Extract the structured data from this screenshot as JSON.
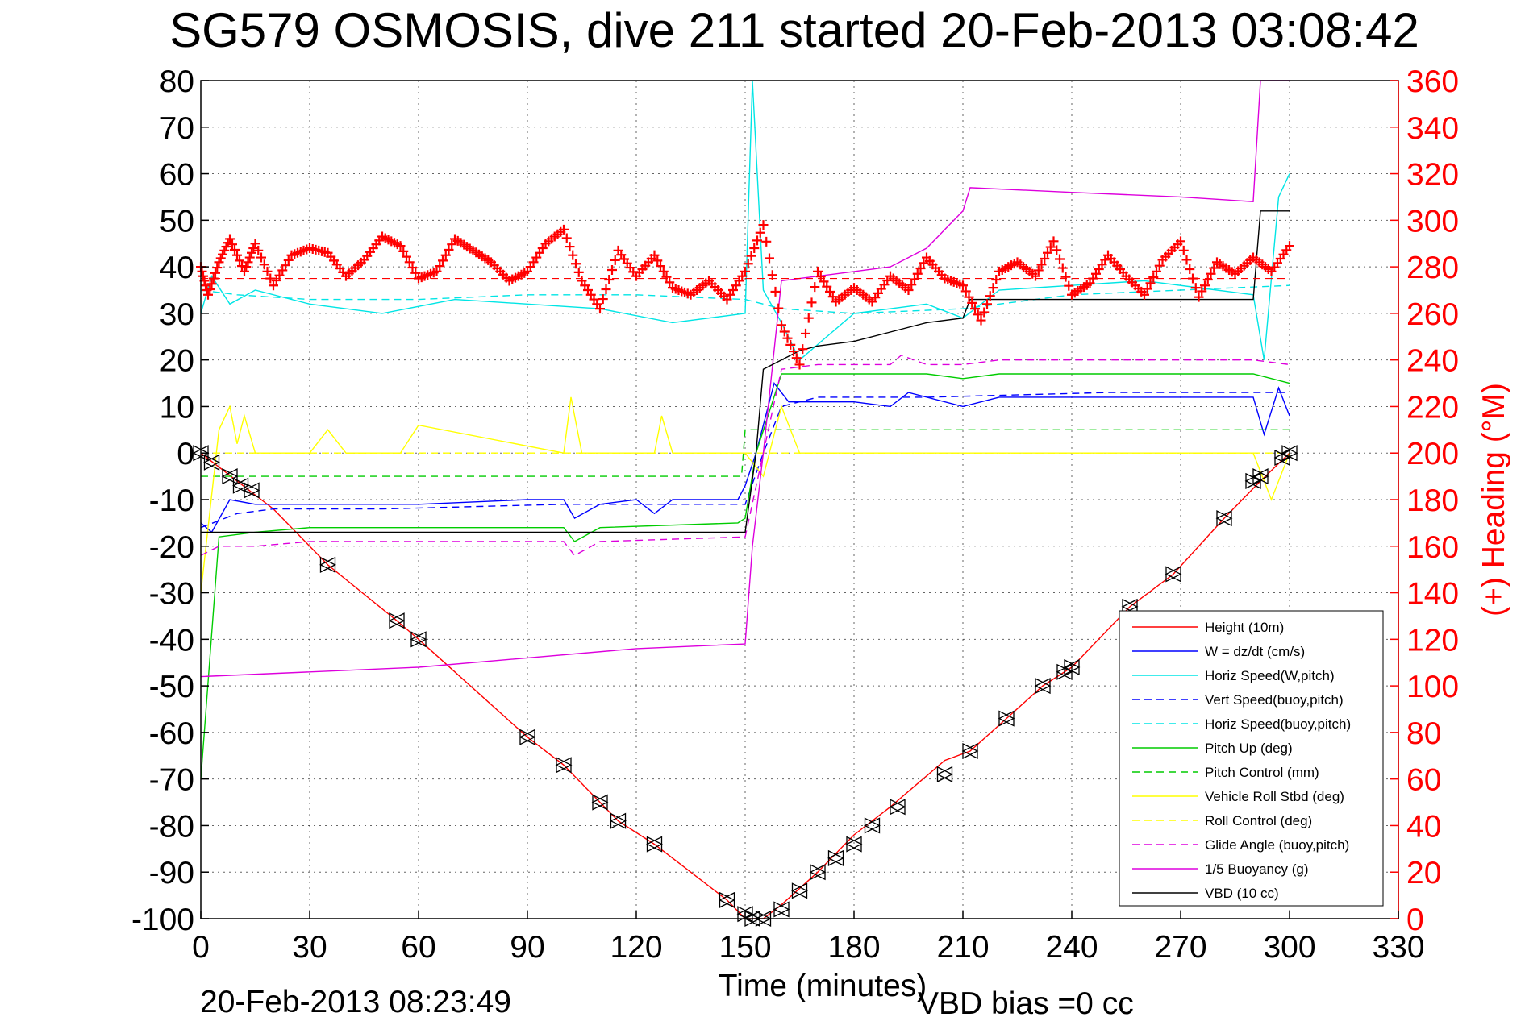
{
  "chart_data": {
    "type": "line",
    "title": "SG579 OSMOSIS, dive 211 started 20-Feb-2013 03:08:42",
    "xlabel": "Time (minutes)",
    "ylabel": "",
    "y2label": "(+) Heading (°M)",
    "xlim": [
      0,
      330
    ],
    "ylim": [
      -100,
      80
    ],
    "y2lim": [
      0,
      360
    ],
    "xticks": [
      "0",
      "30",
      "60",
      "90",
      "120",
      "150",
      "180",
      "210",
      "240",
      "270",
      "300",
      "330"
    ],
    "yticks": [
      "80",
      "70",
      "60",
      "50",
      "40",
      "30",
      "20",
      "10",
      "0",
      "-10",
      "-20",
      "-30",
      "-40",
      "-50",
      "-60",
      "-70",
      "-80",
      "-90",
      "-100"
    ],
    "y2ticks": [
      "360",
      "340",
      "320",
      "300",
      "280",
      "260",
      "240",
      "220",
      "200",
      "180",
      "160",
      "140",
      "120",
      "100",
      "80",
      "60",
      "40",
      "20",
      "0"
    ],
    "grid": true,
    "legend_position": "bottom-right",
    "footer_left": "20-Feb-2013 08:23:49",
    "footer_right": "VBD bias =0 cc",
    "colors": {
      "heading": "#ff0000",
      "axis_right": "#ff0000"
    },
    "series": [
      {
        "name": "Height (10m)",
        "color": "#ff0000",
        "style": "solid",
        "x": [
          0,
          10,
          20,
          35,
          54,
          60,
          90,
          100,
          110,
          115,
          125,
          145,
          150,
          155,
          160,
          170,
          180,
          190,
          205,
          212,
          222,
          232,
          240,
          256,
          268,
          282,
          292,
          300
        ],
        "y": [
          0,
          -6,
          -12,
          -24,
          -36,
          -40,
          -61,
          -67,
          -75,
          -79,
          -84,
          -96,
          -100,
          -100,
          -97,
          -90,
          -82,
          -76,
          -66,
          -64,
          -57,
          -50,
          -46,
          -33,
          -26,
          -14,
          -6,
          0
        ]
      },
      {
        "name": "W = dz/dt (cm/s)",
        "color": "#0000ff",
        "style": "solid",
        "x": [
          0,
          3,
          8,
          15,
          30,
          60,
          90,
          100,
          103,
          110,
          120,
          125,
          130,
          148,
          150,
          153,
          158,
          162,
          170,
          180,
          190,
          195,
          210,
          220,
          240,
          270,
          290,
          293,
          297,
          300
        ],
        "y": [
          -15,
          -17,
          -10,
          -11,
          -11,
          -11,
          -10,
          -10,
          -14,
          -11,
          -10,
          -13,
          -10,
          -10,
          -7,
          0,
          15,
          11,
          11,
          11,
          10,
          13,
          10,
          12,
          12,
          12,
          12,
          4,
          14,
          8
        ]
      },
      {
        "name": "Horiz Speed(W,pitch)",
        "color": "#00e5e5",
        "style": "solid",
        "x": [
          0,
          3,
          8,
          15,
          30,
          50,
          70,
          90,
          110,
          130,
          150,
          152,
          155,
          160,
          165,
          180,
          200,
          210,
          220,
          240,
          260,
          280,
          290,
          293,
          297,
          300
        ],
        "y": [
          30,
          38,
          32,
          35,
          32,
          30,
          33,
          32,
          31,
          28,
          30,
          80,
          35,
          28,
          20,
          30,
          32,
          29,
          35,
          36,
          37,
          35,
          34,
          20,
          55,
          60
        ]
      },
      {
        "name": "Vert Speed(buoy,pitch)",
        "color": "#0000ff",
        "style": "dashed",
        "x": [
          0,
          10,
          20,
          50,
          100,
          150,
          155,
          160,
          170,
          200,
          250,
          290,
          300
        ],
        "y": [
          -16,
          -13,
          -12,
          -12,
          -11,
          -11,
          0,
          10,
          12,
          12,
          13,
          13,
          13
        ]
      },
      {
        "name": "Horiz Speed(buoy,pitch)",
        "color": "#00e5e5",
        "style": "dashed",
        "x": [
          0,
          10,
          30,
          60,
          90,
          120,
          150,
          160,
          180,
          210,
          240,
          270,
          300
        ],
        "y": [
          35,
          34,
          33,
          33,
          34,
          34,
          33,
          31,
          30,
          31,
          34,
          35,
          36
        ]
      },
      {
        "name": "Pitch Up (deg)",
        "color": "#00cc00",
        "style": "solid",
        "x": [
          0,
          5,
          15,
          30,
          60,
          100,
          103,
          110,
          148,
          150,
          153,
          160,
          170,
          200,
          210,
          220,
          260,
          290,
          300
        ],
        "y": [
          -70,
          -18,
          -17,
          -16,
          -16,
          -16,
          -19,
          -16,
          -15,
          -14,
          0,
          17,
          17,
          17,
          16,
          17,
          17,
          17,
          15
        ]
      },
      {
        "name": "Pitch Control (mm)",
        "color": "#00cc00",
        "style": "dashed",
        "x": [
          0,
          10,
          149,
          150,
          170,
          210,
          300
        ],
        "y": [
          -5,
          -5,
          -5,
          5,
          5,
          5,
          5
        ]
      },
      {
        "name": "Vehicle Roll Stbd (deg)",
        "color": "#ffff00",
        "style": "solid",
        "x": [
          0,
          5,
          8,
          10,
          12,
          15,
          30,
          35,
          40,
          55,
          60,
          100,
          102,
          105,
          125,
          127,
          130,
          150,
          155,
          160,
          165,
          180,
          200,
          210,
          240,
          270,
          290,
          295,
          300
        ],
        "y": [
          -30,
          5,
          10,
          2,
          8,
          0,
          0,
          5,
          0,
          0,
          6,
          0,
          12,
          0,
          0,
          8,
          0,
          0,
          -5,
          10,
          0,
          0,
          0,
          0,
          0,
          0,
          0,
          -10,
          0
        ]
      },
      {
        "name": "Roll Control (deg)",
        "color": "#ffff00",
        "style": "dashed",
        "x": [
          0,
          300
        ],
        "y": [
          0,
          0
        ]
      },
      {
        "name": "Glide Angle (buoy,pitch)",
        "color": "#dd00dd",
        "style": "dashed",
        "x": [
          0,
          5,
          15,
          30,
          60,
          100,
          103,
          110,
          150,
          155,
          160,
          170,
          190,
          193,
          200,
          210,
          220,
          260,
          290,
          300
        ],
        "y": [
          -22,
          -20,
          -20,
          -19,
          -19,
          -19,
          -22,
          -19,
          -18,
          0,
          18,
          19,
          19,
          21,
          19,
          19,
          20,
          20,
          20,
          19
        ]
      },
      {
        "name": "1/5 Buoyancy (g)",
        "color": "#dd00dd",
        "style": "solid",
        "x": [
          0,
          30,
          60,
          90,
          120,
          150,
          152,
          155,
          160,
          170,
          180,
          190,
          195,
          200,
          205,
          210,
          212,
          240,
          270,
          290,
          292,
          300
        ],
        "y": [
          -48,
          -47,
          -46,
          -44,
          -42,
          -41,
          -20,
          0,
          37,
          38,
          39,
          40,
          42,
          44,
          48,
          52,
          57,
          56,
          55,
          54,
          80,
          80
        ]
      },
      {
        "name": "VBD (10 cc)",
        "color": "#000000",
        "style": "solid",
        "x": [
          0,
          150,
          153,
          155,
          165,
          170,
          180,
          190,
          200,
          210,
          212,
          220,
          240,
          290,
          292,
          300
        ],
        "y": [
          -17,
          -17,
          0,
          18,
          22,
          23,
          24,
          26,
          28,
          29,
          33,
          33,
          33,
          33,
          52,
          52
        ]
      }
    ],
    "heading": {
      "name": "(+) Heading (°M)",
      "color": "#ff0000",
      "marker": "+",
      "x": [
        0,
        2,
        5,
        8,
        12,
        15,
        20,
        25,
        30,
        35,
        40,
        45,
        50,
        55,
        60,
        65,
        70,
        75,
        80,
        85,
        90,
        95,
        100,
        105,
        110,
        115,
        120,
        125,
        130,
        135,
        140,
        145,
        150,
        155,
        160,
        165,
        170,
        175,
        180,
        185,
        190,
        195,
        200,
        205,
        210,
        215,
        220,
        225,
        230,
        235,
        240,
        245,
        250,
        255,
        260,
        265,
        270,
        275,
        280,
        285,
        290,
        295,
        300
      ],
      "y": [
        280,
        268,
        282,
        292,
        278,
        290,
        272,
        285,
        288,
        286,
        276,
        283,
        293,
        289,
        275,
        278,
        292,
        287,
        282,
        274,
        278,
        290,
        296,
        274,
        262,
        287,
        276,
        285,
        271,
        268,
        274,
        266,
        278,
        298,
        255,
        238,
        278,
        265,
        271,
        265,
        276,
        270,
        284,
        275,
        272,
        257,
        278,
        282,
        276,
        291,
        268,
        273,
        285,
        276,
        268,
        283,
        291,
        267,
        282,
        277,
        284,
        278,
        289
      ],
      "reference_line": 275
    },
    "markers": {
      "color": "#000000",
      "x": [
        0,
        3,
        8,
        11,
        14,
        35,
        54,
        60,
        90,
        100,
        110,
        115,
        125,
        145,
        150,
        152,
        155,
        160,
        165,
        170,
        175,
        180,
        185,
        192,
        205,
        212,
        222,
        232,
        238,
        240,
        256,
        268,
        282,
        290,
        292,
        298,
        300
      ],
      "y": [
        0,
        -2,
        -5,
        -7,
        -8,
        -24,
        -36,
        -40,
        -61,
        -67,
        -75,
        -79,
        -84,
        -96,
        -99,
        -100,
        -100,
        -98,
        -94,
        -90,
        -87,
        -84,
        -80,
        -76,
        -69,
        -64,
        -57,
        -50,
        -47,
        -46,
        -33,
        -26,
        -14,
        -6,
        -5,
        -1,
        0
      ]
    }
  }
}
